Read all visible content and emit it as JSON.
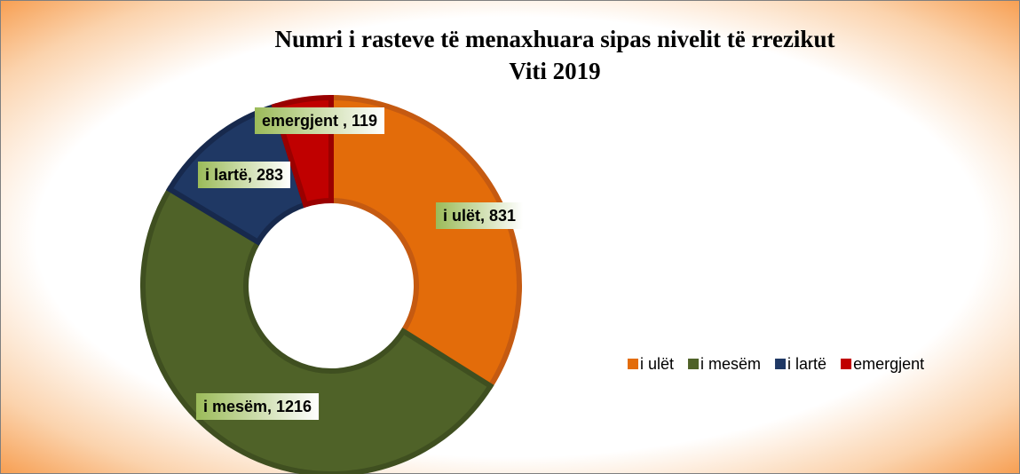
{
  "chart_data": {
    "type": "donut",
    "title": [
      "Numri i rasteve të menaxhuara sipas nivelit të rrezikut",
      "Viti 2019"
    ],
    "categories": [
      "i ulët",
      "i mesëm",
      "i lartë",
      "emergjent"
    ],
    "values": [
      831,
      1216,
      283,
      119
    ],
    "value_labels": [
      "i ulët, 831",
      "i mesëm, 1216",
      "i lartë, 283",
      "emergjent , 119"
    ],
    "colors": [
      "#e36c0a",
      "#4f6228",
      "#1f3864",
      "#c00000"
    ],
    "legend": "right"
  }
}
